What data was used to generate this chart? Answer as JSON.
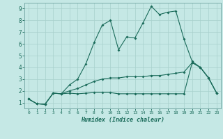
{
  "xlabel": "Humidex (Indice chaleur)",
  "xlim": [
    -0.5,
    23.5
  ],
  "ylim": [
    0.5,
    9.5
  ],
  "xticks": [
    0,
    1,
    2,
    3,
    4,
    5,
    6,
    7,
    8,
    9,
    10,
    11,
    12,
    13,
    14,
    15,
    16,
    17,
    18,
    19,
    20,
    21,
    22,
    23
  ],
  "yticks": [
    1,
    2,
    3,
    4,
    5,
    6,
    7,
    8,
    9
  ],
  "background_color": "#c5e8e5",
  "grid_color": "#a8d0cc",
  "line_color": "#1a6b5a",
  "line1_x": [
    0,
    1,
    2,
    3,
    4,
    5,
    6,
    7,
    8,
    9,
    10,
    11,
    12,
    13,
    14,
    15,
    16,
    17,
    18,
    19,
    20,
    21,
    22,
    23
  ],
  "line1_y": [
    1.3,
    0.9,
    0.85,
    1.8,
    1.75,
    2.5,
    3.0,
    4.3,
    6.1,
    7.6,
    8.0,
    5.5,
    6.6,
    6.5,
    7.8,
    9.2,
    8.5,
    8.7,
    8.8,
    6.4,
    4.5,
    4.0,
    3.1,
    1.8
  ],
  "line2_x": [
    0,
    1,
    2,
    3,
    4,
    5,
    6,
    7,
    8,
    9,
    10,
    11,
    12,
    13,
    14,
    15,
    16,
    17,
    18,
    19,
    20,
    21,
    22,
    23
  ],
  "line2_y": [
    1.3,
    0.9,
    0.85,
    1.8,
    1.75,
    2.0,
    2.2,
    2.5,
    2.8,
    3.0,
    3.1,
    3.1,
    3.2,
    3.2,
    3.2,
    3.3,
    3.3,
    3.4,
    3.5,
    3.6,
    4.4,
    4.0,
    3.1,
    1.8
  ],
  "line3_x": [
    0,
    1,
    2,
    3,
    4,
    5,
    6,
    7,
    8,
    9,
    10,
    11,
    12,
    13,
    14,
    15,
    16,
    17,
    18,
    19,
    20,
    21,
    22,
    23
  ],
  "line3_y": [
    1.3,
    0.9,
    0.85,
    1.8,
    1.75,
    1.8,
    1.75,
    1.8,
    1.85,
    1.85,
    1.85,
    1.75,
    1.75,
    1.75,
    1.75,
    1.75,
    1.75,
    1.75,
    1.75,
    1.75,
    4.4,
    4.0,
    3.1,
    1.8
  ]
}
